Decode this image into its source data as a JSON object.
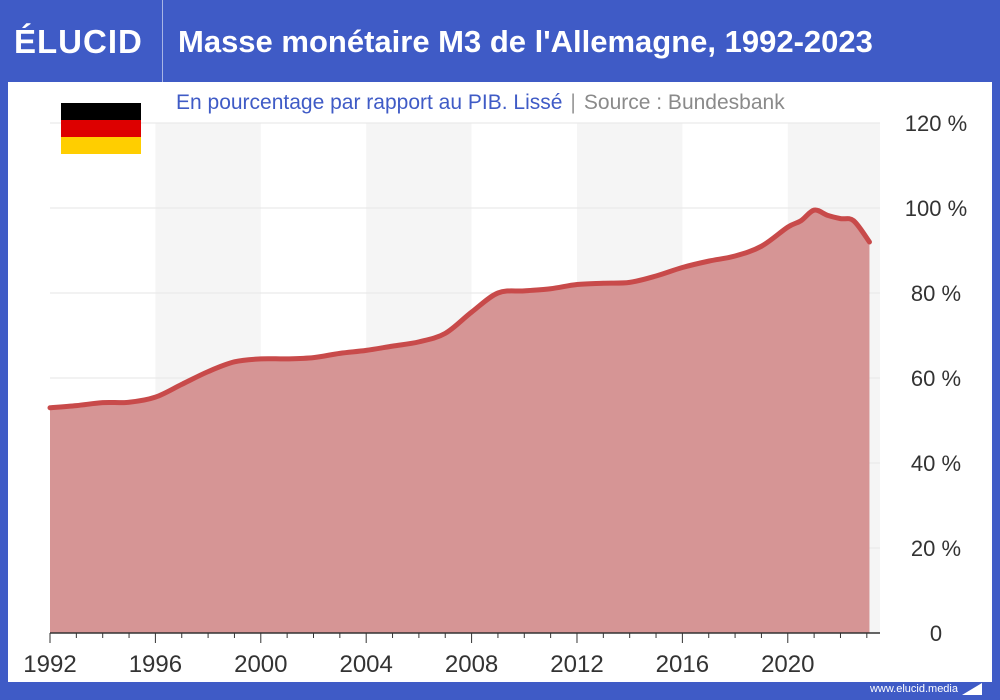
{
  "brand": {
    "name": "ÉLUCID"
  },
  "header": {
    "title": "Masse monétaire M3 de l'Allemagne, 1992-2023"
  },
  "subtitle": {
    "main": "En pourcentage par rapport au PIB. Lissé",
    "separator": "|",
    "source": "Source : Bundesbank"
  },
  "footer": {
    "url": "www.elucid.media"
  },
  "colors": {
    "brand_blue": "#3f5bc6",
    "area_fill": "#d69595",
    "line": "#c84a4a",
    "stripe": "#f5f5f5",
    "flag_black": "#000000",
    "flag_red": "#dd0000",
    "flag_gold": "#ffce00"
  },
  "flag": {
    "icon": "germany-flag-icon"
  },
  "chart_data": {
    "type": "area",
    "x": [
      1992,
      1993,
      1994,
      1995,
      1996,
      1997,
      1998,
      1999,
      2000,
      2001,
      2002,
      2003,
      2004,
      2005,
      2006,
      2007,
      2008,
      2009,
      2010,
      2011,
      2012,
      2013,
      2014,
      2015,
      2016,
      2017,
      2018,
      2019,
      2020,
      2020.5,
      2021,
      2021.5,
      2022,
      2022.5,
      2023.1
    ],
    "series": [
      {
        "values": [
          53,
          53.5,
          54.2,
          54.3,
          55.5,
          58.5,
          61.5,
          63.8,
          64.5,
          64.5,
          64.8,
          65.8,
          66.5,
          67.5,
          68.5,
          70.5,
          75.5,
          80,
          80.5,
          81,
          82,
          82.3,
          82.5,
          84,
          86,
          87.5,
          88.7,
          91,
          95.5,
          97,
          99.5,
          98.3,
          97.5,
          97,
          92
        ]
      }
    ],
    "xlim": [
      1992,
      2023.5
    ],
    "ylim": [
      0,
      120
    ],
    "xticks": [
      "1992",
      "1996",
      "2000",
      "2004",
      "2008",
      "2012",
      "2016",
      "2020"
    ],
    "yticks": [
      "0",
      "20 %",
      "40 %",
      "60 %",
      "80 %",
      "100 %",
      "120 %"
    ],
    "grid": true,
    "background_stripes": true
  }
}
